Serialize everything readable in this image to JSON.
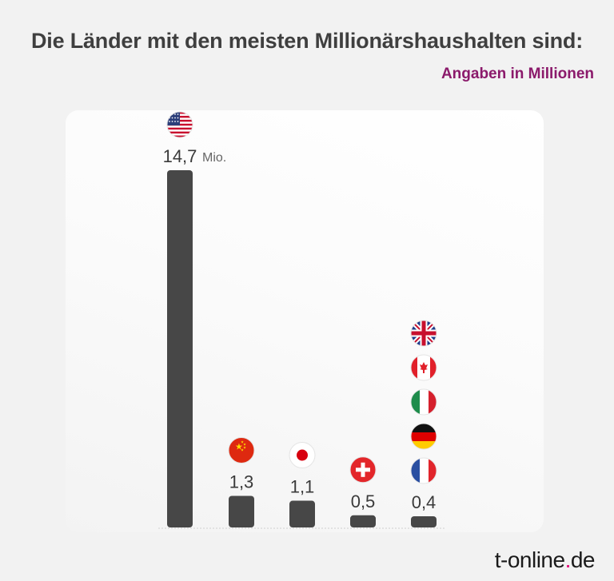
{
  "title": "Die Länder mit den meisten Millionärshaushalten sind:",
  "subtitle": "Angaben in Millionen",
  "brand": {
    "name": "t-online",
    "dot": ".",
    "tld": "de"
  },
  "colors": {
    "bar": "#474747",
    "subtitle": "#8b1a6b",
    "brand_dot": "#e20074"
  },
  "chart_data": {
    "type": "bar",
    "unit_label": "Mio.",
    "ylim": [
      0,
      14.7
    ],
    "grid": false,
    "bars": [
      {
        "label": "14,7",
        "value": 14.7,
        "flags": [
          "us-flag-icon"
        ]
      },
      {
        "label": "1,3",
        "value": 1.3,
        "flags": [
          "cn-flag-icon"
        ]
      },
      {
        "label": "1,1",
        "value": 1.1,
        "flags": [
          "jp-flag-icon"
        ]
      },
      {
        "label": "0,5",
        "value": 0.5,
        "flags": [
          "ch-flag-icon"
        ]
      },
      {
        "label": "0,4",
        "value": 0.4,
        "flags": [
          "fr-flag-icon",
          "de-flag-icon",
          "it-flag-icon",
          "ca-flag-icon",
          "gb-flag-icon"
        ]
      }
    ]
  }
}
